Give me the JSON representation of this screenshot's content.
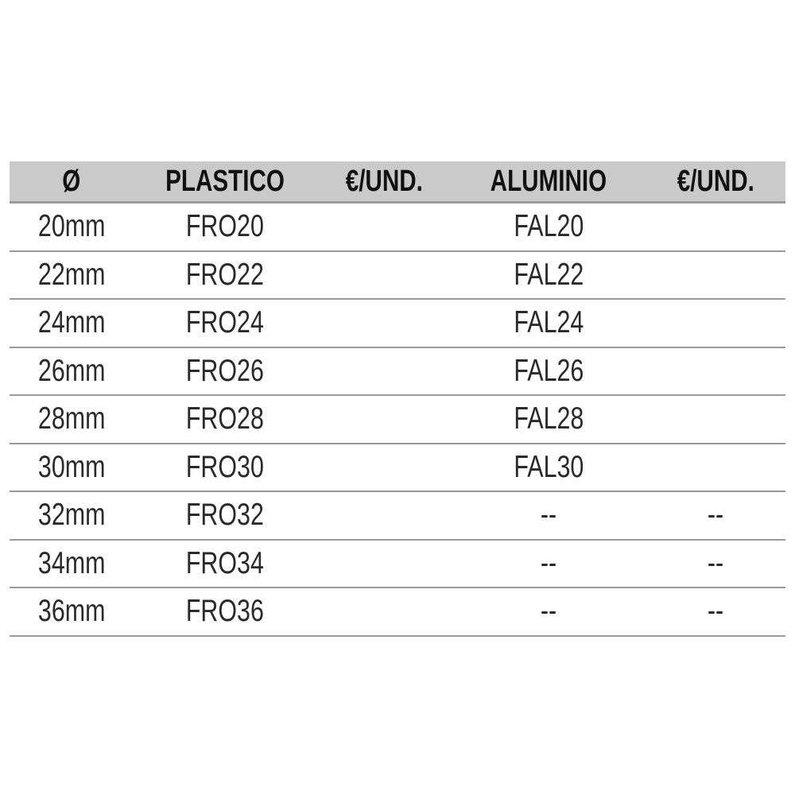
{
  "table": {
    "headers": [
      "Ø",
      "PLASTICO",
      "€/UND.",
      "ALUMINIO",
      "€/UND."
    ],
    "rows": [
      [
        "20mm",
        "FRO20",
        "",
        "FAL20",
        ""
      ],
      [
        "22mm",
        "FRO22",
        "",
        "FAL22",
        ""
      ],
      [
        "24mm",
        "FRO24",
        "",
        "FAL24",
        ""
      ],
      [
        "26mm",
        "FRO26",
        "",
        "FAL26",
        ""
      ],
      [
        "28mm",
        "FRO28",
        "",
        "FAL28",
        ""
      ],
      [
        "30mm",
        "FRO30",
        "",
        "FAL30",
        ""
      ],
      [
        "32mm",
        "FRO32",
        "",
        "--",
        "--"
      ],
      [
        "34mm",
        "FRO34",
        "",
        "--",
        "--"
      ],
      [
        "36mm",
        "FRO36",
        "",
        "--",
        "--"
      ]
    ]
  },
  "colors": {
    "header_bg": "#cacaca",
    "divider": "#9a9a9a"
  }
}
